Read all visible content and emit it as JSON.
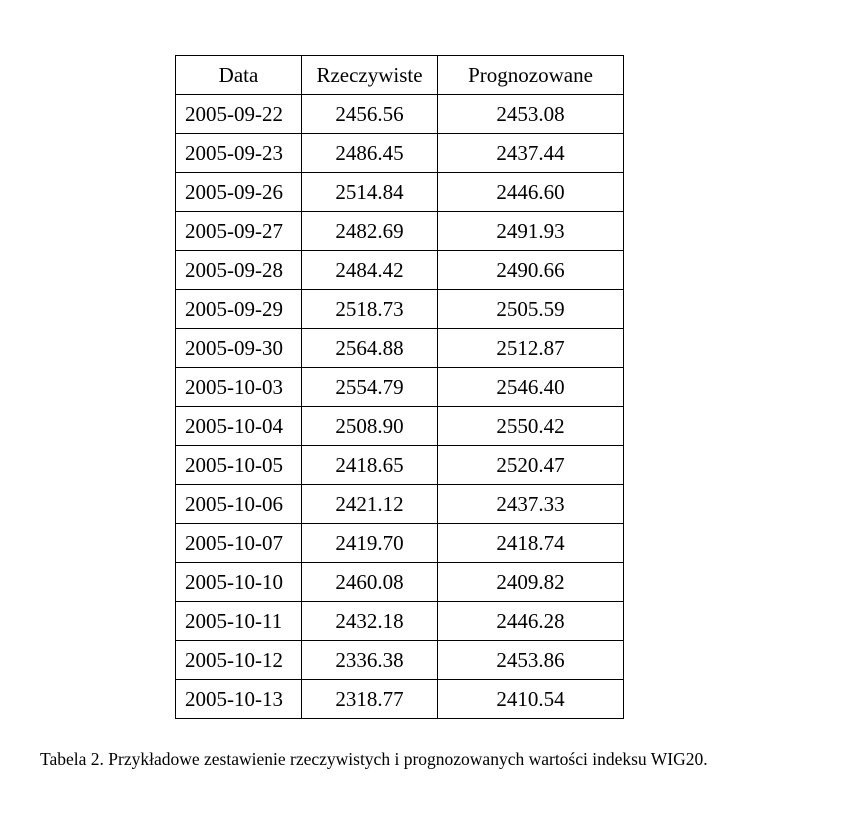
{
  "table": {
    "columns": [
      "Data",
      "Rzeczywiste",
      "Prognozowane"
    ],
    "rows": [
      [
        "2005-09-22",
        "2456.56",
        "2453.08"
      ],
      [
        "2005-09-23",
        "2486.45",
        "2437.44"
      ],
      [
        "2005-09-26",
        "2514.84",
        "2446.60"
      ],
      [
        "2005-09-27",
        "2482.69",
        "2491.93"
      ],
      [
        "2005-09-28",
        "2484.42",
        "2490.66"
      ],
      [
        "2005-09-29",
        "2518.73",
        "2505.59"
      ],
      [
        "2005-09-30",
        "2564.88",
        "2512.87"
      ],
      [
        "2005-10-03",
        "2554.79",
        "2546.40"
      ],
      [
        "2005-10-04",
        "2508.90",
        "2550.42"
      ],
      [
        "2005-10-05",
        "2418.65",
        "2520.47"
      ],
      [
        "2005-10-06",
        "2421.12",
        "2437.33"
      ],
      [
        "2005-10-07",
        "2419.70",
        "2418.74"
      ],
      [
        "2005-10-10",
        "2460.08",
        "2409.82"
      ],
      [
        "2005-10-11",
        "2432.18",
        "2446.28"
      ],
      [
        "2005-10-12",
        "2336.38",
        "2453.86"
      ],
      [
        "2005-10-13",
        "2318.77",
        "2410.54"
      ]
    ]
  },
  "caption": "Tabela 2. Przykładowe zestawienie rzeczywistych i prognozowanych wartości indeksu WIG20."
}
